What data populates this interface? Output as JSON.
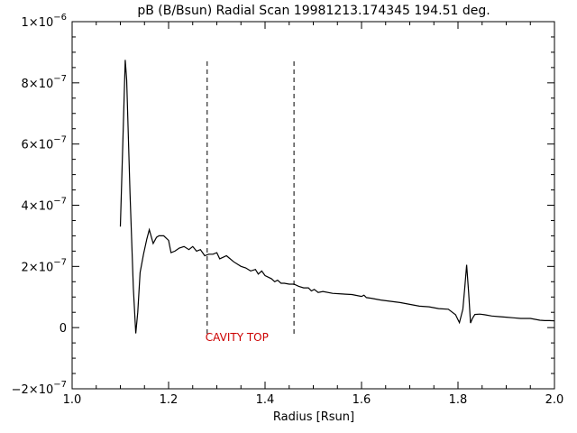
{
  "chart_data": {
    "type": "line",
    "title": "pB (B/Bsun) Radial Scan 19981213.174345 194.51 deg.",
    "xlabel": "Radius [Rsun]",
    "ylabel": "",
    "xlim": [
      1.0,
      2.0
    ],
    "ylim": [
      -2e-07,
      1e-06
    ],
    "x_ticks": [
      1.0,
      1.2,
      1.4,
      1.6,
      1.8,
      2.0
    ],
    "x_tick_labels": [
      "1.0",
      "1.2",
      "1.4",
      "1.6",
      "1.8",
      "2.0"
    ],
    "y_ticks": [
      -2e-07,
      0,
      2e-07,
      4e-07,
      6e-07,
      8e-07,
      1e-06
    ],
    "y_tick_labels": [
      {
        "mant": "−2×10",
        "exp": "−7"
      },
      {
        "mant": "0",
        "exp": ""
      },
      {
        "mant": "2×10",
        "exp": "−7"
      },
      {
        "mant": "4×10",
        "exp": "−7"
      },
      {
        "mant": "6×10",
        "exp": "−7"
      },
      {
        "mant": "8×10",
        "exp": "−7"
      },
      {
        "mant": "1×10",
        "exp": "−6"
      }
    ],
    "grid": false,
    "line_color": "#000000",
    "series": [
      {
        "x": [
          1.1,
          1.105,
          1.11,
          1.113,
          1.12,
          1.127,
          1.132,
          1.136,
          1.141,
          1.148,
          1.155,
          1.16,
          1.168,
          1.175,
          1.18,
          1.19,
          1.2,
          1.205,
          1.213,
          1.222,
          1.232,
          1.242,
          1.25,
          1.258,
          1.266,
          1.275,
          1.283,
          1.292,
          1.3,
          1.306,
          1.313,
          1.32,
          1.335,
          1.35,
          1.36,
          1.37,
          1.38,
          1.386,
          1.393,
          1.4,
          1.413,
          1.42,
          1.426,
          1.433,
          1.44,
          1.45,
          1.46,
          1.47,
          1.48,
          1.49,
          1.496,
          1.502,
          1.51,
          1.52,
          1.54,
          1.56,
          1.58,
          1.6,
          1.605,
          1.61,
          1.62,
          1.64,
          1.66,
          1.68,
          1.7,
          1.72,
          1.74,
          1.76,
          1.78,
          1.795,
          1.803,
          1.81,
          1.814,
          1.818,
          1.822,
          1.826,
          1.83,
          1.835,
          1.845,
          1.855,
          1.87,
          1.885,
          1.9,
          1.915,
          1.93,
          1.95,
          1.97,
          1.98,
          1.99,
          2.0
        ],
        "y": [
          3.3e-07,
          6e-07,
          8.75e-07,
          8.1e-07,
          4.4e-07,
          1.3e-07,
          -1.9e-08,
          5e-08,
          1.8e-07,
          2.4e-07,
          2.9e-07,
          3.2e-07,
          2.75e-07,
          2.95e-07,
          3e-07,
          3e-07,
          2.85e-07,
          2.45e-07,
          2.5e-07,
          2.6e-07,
          2.65e-07,
          2.55e-07,
          2.65e-07,
          2.5e-07,
          2.55e-07,
          2.35e-07,
          2.4e-07,
          2.4e-07,
          2.45e-07,
          2.25e-07,
          2.3e-07,
          2.35e-07,
          2.15e-07,
          2e-07,
          1.95e-07,
          1.85e-07,
          1.9e-07,
          1.75e-07,
          1.85e-07,
          1.7e-07,
          1.6e-07,
          1.5e-07,
          1.55e-07,
          1.45e-07,
          1.45e-07,
          1.42e-07,
          1.42e-07,
          1.35e-07,
          1.3e-07,
          1.3e-07,
          1.2e-07,
          1.25e-07,
          1.15e-07,
          1.18e-07,
          1.12e-07,
          1.1e-07,
          1.08e-07,
          1.02e-07,
          1.06e-07,
          9.8e-08,
          9.6e-08,
          9e-08,
          8.6e-08,
          8.2e-08,
          7.6e-08,
          7e-08,
          6.8e-08,
          6.2e-08,
          6e-08,
          4.2e-08,
          1.6e-08,
          6e-08,
          1.3e-07,
          2.05e-07,
          1.15e-07,
          1.5e-08,
          3e-08,
          4.3e-08,
          4.4e-08,
          4.2e-08,
          3.8e-08,
          3.6e-08,
          3.4e-08,
          3.2e-08,
          3e-08,
          3e-08,
          2.4e-08,
          2.3e-08,
          2.3e-08,
          2.2e-08
        ]
      }
    ],
    "vlines": [
      {
        "x": 1.28,
        "y0": -2e-08,
        "y1": 8.75e-07,
        "style": "dashed"
      },
      {
        "x": 1.46,
        "y0": -2e-08,
        "y1": 8.75e-07,
        "style": "dashed"
      }
    ],
    "annotations": [
      {
        "text": "CAVITY TOP",
        "x": 1.28,
        "y": -2e-08,
        "color": "#cc0000"
      }
    ]
  }
}
